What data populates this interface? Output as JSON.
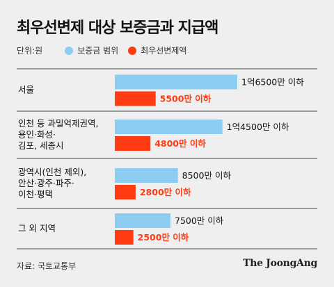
{
  "title": "최우선변제 대상 보증금과 지급액",
  "unit": "단위:원",
  "source": "자료: 국토교통부",
  "publisher": "The JoongAng",
  "chart_data": {
    "type": "bar",
    "orientation": "horizontal",
    "categories": [
      [
        "서울"
      ],
      [
        "인천 등 과밀억제권역,",
        "용인·화성·",
        "김포, 세종시"
      ],
      [
        "광역시(인천 제외),",
        "안산·광주·파주·",
        "이천·평택"
      ],
      [
        "그 외 지역"
      ]
    ],
    "series": [
      {
        "name": "보증금 범위",
        "color": "#8ccdf1",
        "values": [
          16500,
          14500,
          8500,
          7500
        ],
        "labels": [
          "1억6500만 이하",
          "1억4500만 이하",
          "8500만 이하",
          "7500만 이하"
        ],
        "label_color": "#111111"
      },
      {
        "name": "최우선변제액",
        "color": "#ff3b13",
        "values": [
          5500,
          4800,
          2800,
          2500
        ],
        "labels": [
          "5500만 이하",
          "4800만 이하",
          "2800만 이하",
          "2500만 이하"
        ],
        "label_color": "#ff3b13"
      }
    ],
    "value_unit": "만원",
    "xlim": [
      0,
      16500
    ],
    "grid": false,
    "legend_position": "top-left"
  }
}
